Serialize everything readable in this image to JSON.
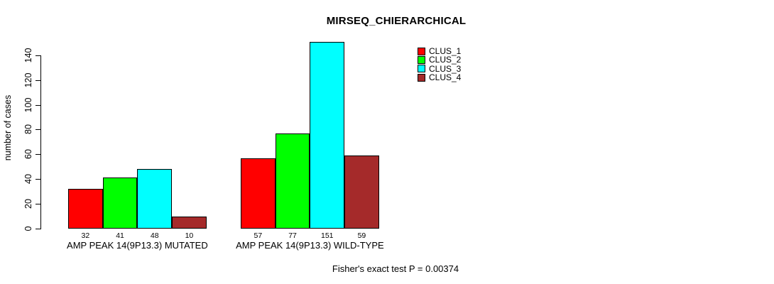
{
  "chart_data": {
    "type": "bar",
    "title": "MIRSEQ_CHIERARCHICAL",
    "ylabel": "number of cases",
    "xlabel": "",
    "caption": "Fisher's exact test P = 0.00374",
    "categories": [
      "AMP PEAK 14(9P13.3) MUTATED",
      "AMP PEAK 14(9P13.3) WILD-TYPE"
    ],
    "series": [
      {
        "name": "CLUS_1",
        "color": "#FF0000",
        "values": [
          32,
          57
        ]
      },
      {
        "name": "CLUS_2",
        "color": "#00FF00",
        "values": [
          41,
          77
        ]
      },
      {
        "name": "CLUS_3",
        "color": "#00FFFF",
        "values": [
          48,
          151
        ]
      },
      {
        "name": "CLUS_4",
        "color": "#A52A2A",
        "values": [
          10,
          59
        ]
      }
    ],
    "bar_value_labels": [
      [
        32,
        41,
        48,
        10
      ],
      [
        57,
        77,
        151,
        59
      ]
    ],
    "y_ticks": [
      0,
      20,
      40,
      60,
      80,
      100,
      120,
      140
    ],
    "ylim": [
      0,
      155
    ],
    "grid": false,
    "legend_position": "top-right"
  }
}
